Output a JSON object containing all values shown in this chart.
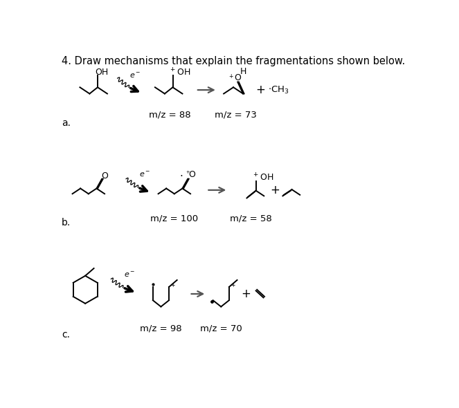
{
  "title": "4. Draw mechanisms that explain the fragmentations shown below.",
  "title_fontsize": 10.5,
  "bg_color": "#ffffff",
  "mz_a": [
    "m/z = 88",
    "m/z = 73"
  ],
  "mz_b": [
    "m/z = 100",
    "m/z = 58"
  ],
  "mz_c": [
    "m/z = 98",
    "m/z = 70"
  ],
  "label_a": "a.",
  "label_b": "b.",
  "label_c": "c.",
  "lw": 1.4
}
